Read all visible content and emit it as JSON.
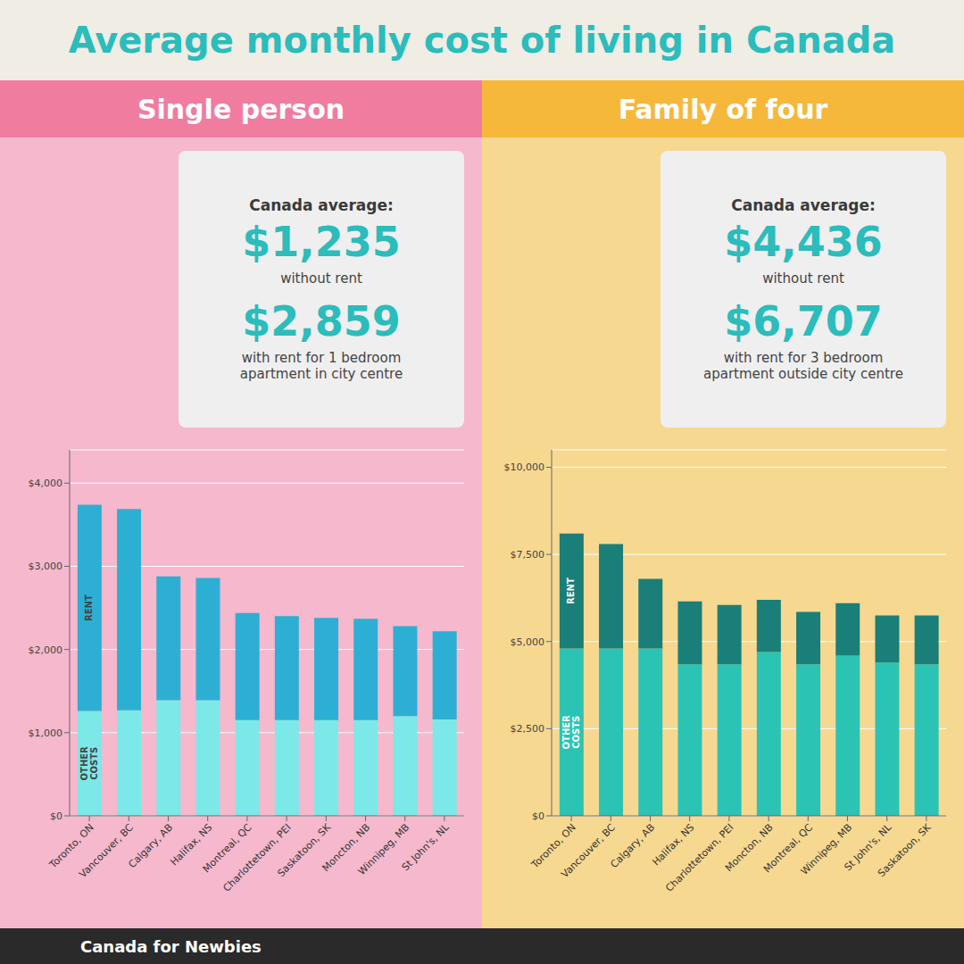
{
  "title": "Average monthly cost of living in Canada",
  "annotations": [
    "Canada for Newbies"
  ],
  "chart_data": [
    {
      "type": "bar",
      "title": "Single person",
      "stacked": true,
      "grid": true,
      "data_labels": false,
      "annotations": [
        "Canada average:",
        "$1,235",
        "without rent",
        "$2,859",
        "with rent for 1 bedroom\napartment in city centre"
      ],
      "categories": [
        "Toronto, ON",
        "Vancouver, BC",
        "Calgary, AB",
        "Halifax, NS",
        "Montreal, QC",
        "Charlottetown, PEI",
        "Saskatoon, SK",
        "Moncton, NB",
        "Winnipeg, MB",
        "St John's, NL"
      ],
      "series": [
        {
          "name": "OTHER\nCOSTS",
          "color": "#7de8e8",
          "values": [
            1260,
            1270,
            1390,
            1390,
            1150,
            1150,
            1150,
            1150,
            1200,
            1160
          ]
        },
        {
          "name": "RENT",
          "color": "#2dafd4",
          "values": [
            2480,
            2420,
            1490,
            1470,
            1290,
            1250,
            1230,
            1220,
            1080,
            1060
          ]
        }
      ],
      "ylim": [
        0,
        4400
      ],
      "yticks": [
        {
          "value": 0,
          "label": "$0"
        },
        {
          "value": 1000,
          "label": "$1,000"
        },
        {
          "value": 2000,
          "label": "$2,000"
        },
        {
          "value": 3000,
          "label": "$3,000"
        },
        {
          "value": 4000,
          "label": "$4,000"
        }
      ]
    },
    {
      "type": "bar",
      "title": "Family of four",
      "stacked": true,
      "grid": true,
      "data_labels": false,
      "annotations": [
        "Canada average:",
        "$4,436",
        "without rent",
        "$6,707",
        "with rent for 3 bedroom\napartment outside city centre"
      ],
      "categories": [
        "Toronto, ON",
        "Vancouver, BC",
        "Calgary, AB",
        "Halifax, NS",
        "Charlottetown, PEI",
        "Moncton, NB",
        "Montreal, QC",
        "Winnipeg, MB",
        "St John's, NL",
        "Saskatoon, SK"
      ],
      "series": [
        {
          "name": "OTHER\nCOSTS",
          "color": "#2bc4b4",
          "values": [
            4800,
            4800,
            4800,
            4350,
            4350,
            4700,
            4350,
            4600,
            4400,
            4350
          ]
        },
        {
          "name": "RENT",
          "color": "#1a7f78",
          "values": [
            3300,
            3000,
            2000,
            1800,
            1700,
            1500,
            1500,
            1500,
            1350,
            1400
          ]
        }
      ],
      "ylim": [
        0,
        10500
      ],
      "yticks": [
        {
          "value": 0,
          "label": "$0"
        },
        {
          "value": 2500,
          "label": "$2,500"
        },
        {
          "value": 5000,
          "label": "$5,000"
        },
        {
          "value": 7500,
          "label": "$7,500"
        },
        {
          "value": 10000,
          "label": "$10,000"
        }
      ]
    }
  ]
}
